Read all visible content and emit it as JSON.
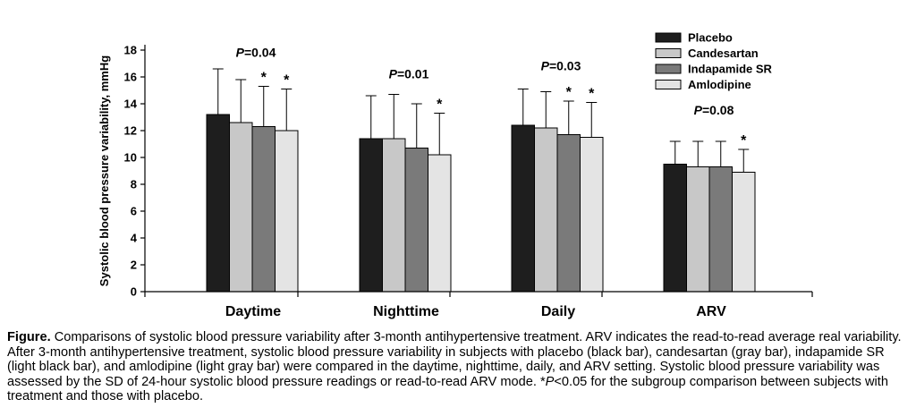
{
  "chart_data": {
    "type": "bar",
    "title": "",
    "xlabel": "",
    "ylabel": "Systolic blood pressure variability, mmHg",
    "ylim": [
      0,
      18
    ],
    "yticks": [
      0,
      2,
      4,
      6,
      8,
      10,
      12,
      14,
      16,
      18
    ],
    "legend_position": "top-right",
    "categories": [
      "Daytime",
      "Nighttime",
      "Daily",
      "ARV"
    ],
    "series": [
      {
        "name": "Placebo",
        "color": "#1e1e1e",
        "values": [
          13.2,
          11.4,
          12.4,
          9.5
        ],
        "errors": [
          3.4,
          3.2,
          2.7,
          1.7
        ]
      },
      {
        "name": "Candesartan",
        "color": "#c8c8c8",
        "values": [
          12.6,
          11.4,
          12.2,
          9.3
        ],
        "errors": [
          3.2,
          3.3,
          2.7,
          1.9
        ]
      },
      {
        "name": "Indapamide SR",
        "color": "#7a7a7a",
        "values": [
          12.3,
          10.7,
          11.7,
          9.3
        ],
        "errors": [
          3.0,
          3.3,
          2.5,
          1.9
        ]
      },
      {
        "name": "Amlodipine",
        "color": "#e4e4e4",
        "values": [
          12.0,
          10.2,
          11.5,
          8.9
        ],
        "errors": [
          3.1,
          3.1,
          2.6,
          1.7
        ]
      }
    ],
    "annotations": {
      "p_values": [
        "P=0.04",
        "P=0.01",
        "P=0.03",
        "P=0.08"
      ],
      "significance_markers": [
        [
          false,
          false,
          true,
          true
        ],
        [
          false,
          false,
          false,
          true
        ],
        [
          false,
          false,
          true,
          true
        ],
        [
          false,
          false,
          false,
          true
        ]
      ],
      "marker_symbol": "*"
    }
  },
  "caption": {
    "label": "Figure.",
    "text_1": " Comparisons of systolic blood pressure variability after 3-month antihypertensive treatment. ARV indicates the read-to-read average real variability. After 3-month antihypertensive treatment, systolic blood pressure variability in subjects with placebo (black bar), candesartan (gray bar), indapamide SR (light black bar), and amlodipine (light gray bar) were compared in the daytime, nighttime, daily, and ARV setting. Systolic blood pressure variability was assessed by the SD of 24-hour systolic blood pressure readings or read-to-read ARV mode. *",
    "p_symbol": "P",
    "text_2": "<0.05 for the subgroup comparison between subjects with treatment and those with placebo."
  }
}
